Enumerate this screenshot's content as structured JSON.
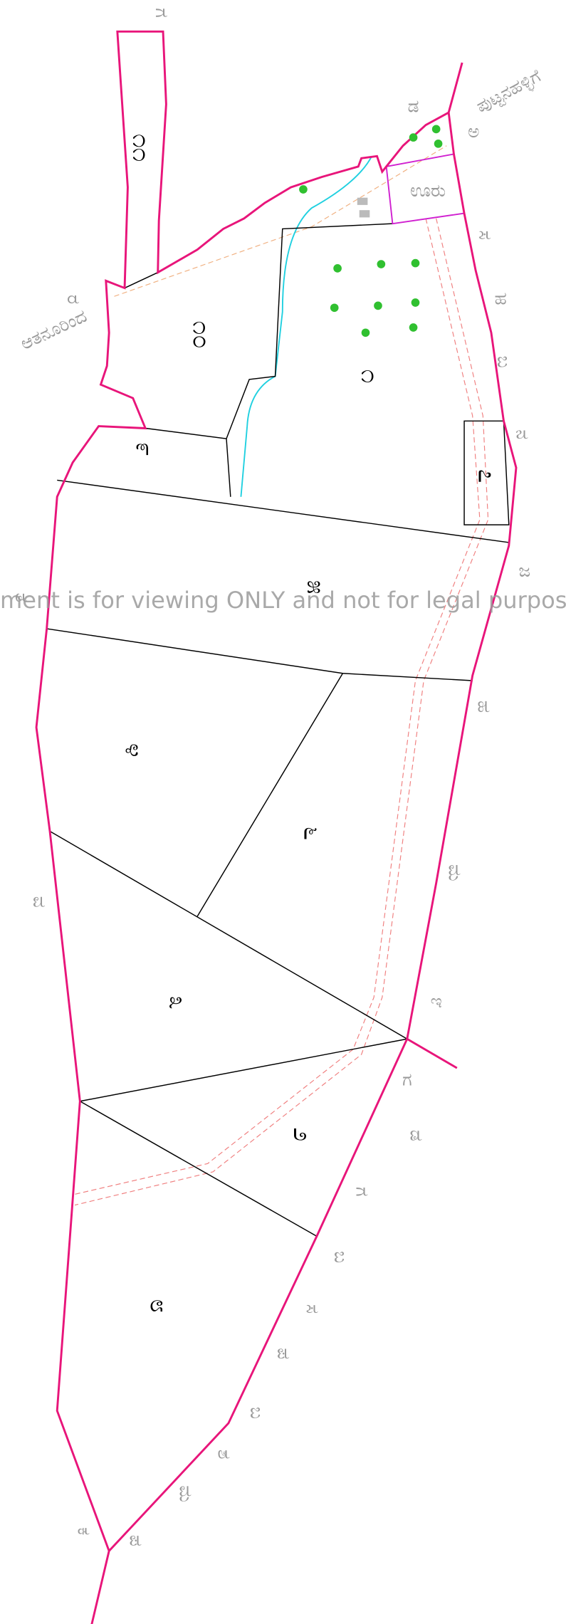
{
  "watermark": "ment is for viewing ONLY and not for legal purpos",
  "labels": {
    "village": "ಊರು",
    "toward_top": "ಪುಟ್ಟನಹಳ್ಳಿಗೆ",
    "from_left": "ಆತನೂರಿಂದ"
  },
  "parcels": [
    "೧೧",
    "೧೦",
    "೧",
    "೯",
    "೭",
    "೫",
    "೪",
    "೬",
    "೩",
    "೨",
    "೮"
  ],
  "boundary_marks": [
    "ಗ",
    "ರ",
    "ಡ",
    "ಅ",
    "ಸ",
    "ಹ",
    "ಬ",
    "ನ",
    "ಜ",
    "ತ",
    "ಹ",
    "ಮ",
    "ವ",
    "ಇ",
    "ಗ",
    "ಡ",
    "ಗ",
    "ಬ",
    "ಸ",
    "ಪ",
    "ಬ",
    "ಶ",
    "ಮ",
    "ಪ",
    "ಕ"
  ]
}
